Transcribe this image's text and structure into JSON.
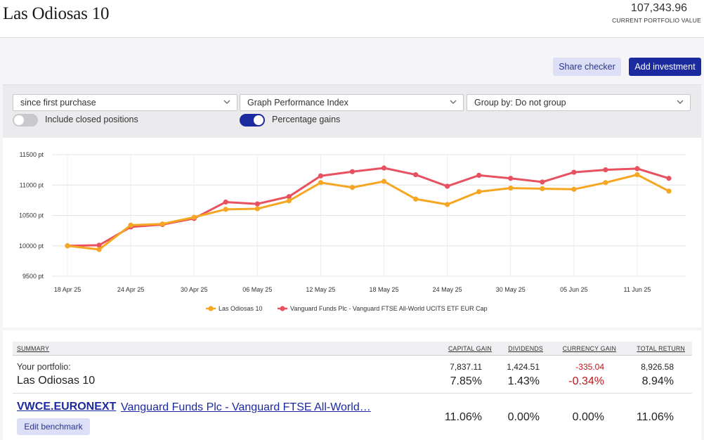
{
  "header": {
    "title": "Las Odiosas 10",
    "value": "107,343.96",
    "value_caption": "CURRENT PORTFOLIO VALUE"
  },
  "actions": {
    "share_label": "Share checker",
    "add_label": "Add investment"
  },
  "controls": {
    "range": "since first purchase",
    "graph": "Graph Performance Index",
    "group": "Group by: Do not group",
    "include_closed_label": "Include closed positions",
    "include_closed_on": false,
    "percentage_gains_label": "Percentage gains",
    "percentage_gains_on": true
  },
  "colors": {
    "accent": "#1c2aa0",
    "portfolio_series": "#f5a623",
    "benchmark_series": "#e8515f",
    "negative": "#c0161b"
  },
  "chart_data": {
    "type": "line",
    "x": [
      "18 Apr 25",
      "21 Apr 25",
      "24 Apr 25",
      "27 Apr 25",
      "30 Apr 25",
      "03 May 25",
      "06 May 25",
      "09 May 25",
      "12 May 25",
      "15 May 25",
      "18 May 25",
      "21 May 25",
      "24 May 25",
      "27 May 25",
      "30 May 25",
      "02 Jun 25",
      "05 Jun 25",
      "08 Jun 25",
      "11 Jun 25",
      "14 Jun 25"
    ],
    "x_ticks": [
      "18 Apr 25",
      "24 Apr 25",
      "30 Apr 25",
      "06 May 25",
      "12 May 25",
      "18 May 25",
      "24 May 25",
      "30 May 25",
      "05 Jun 25",
      "11 Jun 25"
    ],
    "y_ticks": [
      "9500 pt",
      "10000 pt",
      "10500 pt",
      "11000 pt",
      "11500 pt"
    ],
    "ylim": [
      9500,
      11500
    ],
    "grid": true,
    "legend_position": "bottom",
    "series": [
      {
        "name": "Las Odiosas 10",
        "color": "#f5a623",
        "values": [
          10000,
          9940,
          10340,
          10360,
          10470,
          10600,
          10610,
          10740,
          11040,
          10960,
          11060,
          10770,
          10680,
          10890,
          10950,
          10940,
          10930,
          11040,
          11170,
          10900
        ]
      },
      {
        "name": "Vanguard Funds Plc - Vanguard FTSE All-World UCITS ETF EUR Cap",
        "color": "#e8515f",
        "values": [
          10000,
          10010,
          10310,
          10350,
          10450,
          10720,
          10690,
          10810,
          11150,
          11220,
          11280,
          11170,
          10980,
          11160,
          11110,
          11050,
          11210,
          11250,
          11270,
          11110
        ]
      }
    ]
  },
  "summary": {
    "headers": {
      "summary": "SUMMARY",
      "capital_gain": "CAPITAL GAIN",
      "dividends": "DIVIDENDS",
      "currency_gain": "CURRENCY GAIN",
      "total_return": "TOTAL RETURN"
    },
    "portfolio": {
      "label_small": "Your portfolio:",
      "label_big": "Las Odiosas 10",
      "capital_gain": "7,837.11",
      "dividends": "1,424.51",
      "currency_gain": "-335.04",
      "total_return": "8,926.58",
      "capital_gain_pct": "7.85%",
      "dividends_pct": "1.43%",
      "currency_gain_pct": "-0.34%",
      "total_return_pct": "8.94%"
    },
    "benchmark": {
      "ticker": "VWCE.EURONEXT",
      "name": "Vanguard Funds Plc - Vanguard FTSE All-World…",
      "edit_label": "Edit benchmark",
      "capital_gain_pct": "11.06%",
      "dividends_pct": "0.00%",
      "currency_gain_pct": "0.00%",
      "total_return_pct": "11.06%"
    }
  }
}
